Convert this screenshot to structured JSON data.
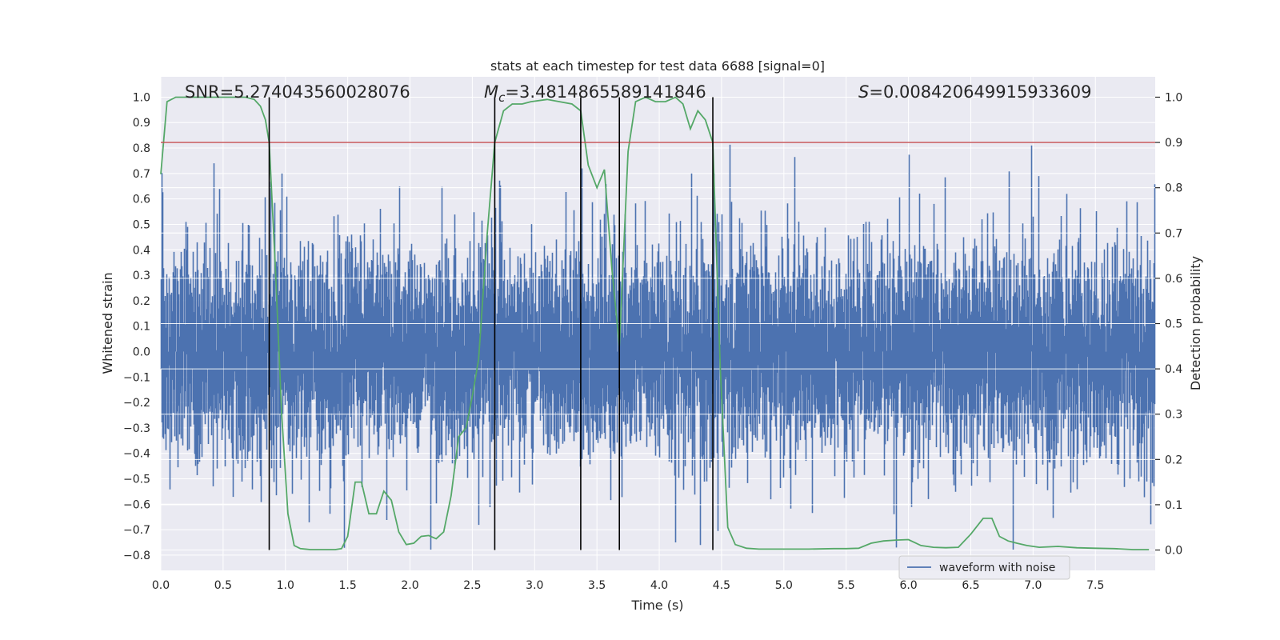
{
  "chart_data": {
    "type": "line",
    "title": "stats at each timestep for test data 6688 [signal=0]",
    "xlabel": "Time (s)",
    "ylabel_left": "Whitened strain",
    "ylabel_right": "Detection probability",
    "xlim": [
      0.0,
      7.98
    ],
    "ylim_left": [
      -0.86,
      1.08
    ],
    "ylim_right": [
      -0.045,
      1.045
    ],
    "x_ticks": [
      "0.0",
      "0.5",
      "1.0",
      "1.5",
      "2.0",
      "2.5",
      "3.0",
      "3.5",
      "4.0",
      "4.5",
      "5.0",
      "5.5",
      "6.0",
      "6.5",
      "7.0",
      "7.5"
    ],
    "y_left_ticks": [
      "-0.8",
      "-0.7",
      "-0.6",
      "-0.5",
      "-0.4",
      "-0.3",
      "-0.2",
      "-0.1",
      "0.0",
      "0.1",
      "0.2",
      "0.3",
      "0.4",
      "0.5",
      "0.6",
      "0.7",
      "0.8",
      "0.9",
      "1.0"
    ],
    "y_right_ticks": [
      "0.0",
      "0.1",
      "0.2",
      "0.3",
      "0.4",
      "0.5",
      "0.6",
      "0.7",
      "0.8",
      "0.9",
      "1.0"
    ],
    "grid": true,
    "annotations": {
      "snr": "SNR=5.274043560028076",
      "mc_symbol": "M",
      "mc_sub": "c",
      "mc_value": "=3.4814865589141846",
      "s_symbol": "S",
      "s_value": "=0.008420649915933609"
    },
    "legend": {
      "label": "waveform with noise",
      "position": "lower-right"
    },
    "threshold": 0.9,
    "detection_boundaries_s": [
      0.87,
      2.68,
      3.37,
      3.68,
      4.43
    ],
    "waveform": {
      "name": "waveform with noise",
      "color": "#4c72b0",
      "sample_rate_hz": 1024,
      "duration_s": 7.98,
      "envelope_pos": 0.46,
      "envelope_neg": -0.47,
      "notable_spikes": [
        {
          "t": 0.43,
          "v": 0.74
        },
        {
          "t": 0.97,
          "v": 0.7
        },
        {
          "t": 3.38,
          "v": 0.72
        },
        {
          "t": 4.26,
          "v": 0.7
        },
        {
          "t": 4.44,
          "v": 0.7
        },
        {
          "t": 6.99,
          "v": 0.81
        },
        {
          "t": 6.84,
          "v": 0.8
        },
        {
          "t": 2.17,
          "v": -0.78
        },
        {
          "t": 4.13,
          "v": -0.75
        },
        {
          "t": 4.33,
          "v": -0.76
        },
        {
          "t": 5.9,
          "v": -0.77
        },
        {
          "t": 6.84,
          "v": -0.78
        }
      ]
    },
    "probability": {
      "name": "Detection probability",
      "color": "#55a868",
      "points": [
        [
          0.0,
          0.83
        ],
        [
          0.05,
          0.99
        ],
        [
          0.12,
          1.0
        ],
        [
          0.25,
          1.0
        ],
        [
          0.4,
          1.0
        ],
        [
          0.55,
          1.0
        ],
        [
          0.68,
          1.0
        ],
        [
          0.75,
          0.995
        ],
        [
          0.8,
          0.98
        ],
        [
          0.84,
          0.95
        ],
        [
          0.87,
          0.9
        ],
        [
          0.92,
          0.62
        ],
        [
          0.97,
          0.3
        ],
        [
          1.02,
          0.08
        ],
        [
          1.07,
          0.01
        ],
        [
          1.12,
          0.003
        ],
        [
          1.2,
          0.001
        ],
        [
          1.4,
          0.001
        ],
        [
          1.45,
          0.003
        ],
        [
          1.5,
          0.03
        ],
        [
          1.56,
          0.15
        ],
        [
          1.61,
          0.15
        ],
        [
          1.67,
          0.08
        ],
        [
          1.73,
          0.08
        ],
        [
          1.79,
          0.13
        ],
        [
          1.85,
          0.11
        ],
        [
          1.91,
          0.04
        ],
        [
          1.97,
          0.012
        ],
        [
          2.03,
          0.015
        ],
        [
          2.09,
          0.03
        ],
        [
          2.15,
          0.032
        ],
        [
          2.21,
          0.025
        ],
        [
          2.27,
          0.04
        ],
        [
          2.33,
          0.12
        ],
        [
          2.39,
          0.25
        ],
        [
          2.45,
          0.27
        ],
        [
          2.5,
          0.34
        ],
        [
          2.55,
          0.42
        ],
        [
          2.62,
          0.7
        ],
        [
          2.68,
          0.9
        ],
        [
          2.75,
          0.97
        ],
        [
          2.82,
          0.985
        ],
        [
          2.9,
          0.985
        ],
        [
          2.97,
          0.99
        ],
        [
          3.1,
          0.995
        ],
        [
          3.2,
          0.99
        ],
        [
          3.3,
          0.985
        ],
        [
          3.37,
          0.97
        ],
        [
          3.43,
          0.85
        ],
        [
          3.5,
          0.8
        ],
        [
          3.56,
          0.84
        ],
        [
          3.62,
          0.62
        ],
        [
          3.68,
          0.45
        ],
        [
          3.75,
          0.88
        ],
        [
          3.81,
          0.99
        ],
        [
          3.89,
          1.0
        ],
        [
          3.97,
          0.99
        ],
        [
          4.05,
          0.99
        ],
        [
          4.13,
          1.0
        ],
        [
          4.19,
          0.985
        ],
        [
          4.25,
          0.93
        ],
        [
          4.31,
          0.97
        ],
        [
          4.37,
          0.95
        ],
        [
          4.43,
          0.9
        ],
        [
          4.49,
          0.4
        ],
        [
          4.55,
          0.05
        ],
        [
          4.61,
          0.012
        ],
        [
          4.7,
          0.004
        ],
        [
          4.8,
          0.002
        ],
        [
          5.0,
          0.002
        ],
        [
          5.2,
          0.002
        ],
        [
          5.4,
          0.003
        ],
        [
          5.5,
          0.003
        ],
        [
          5.6,
          0.004
        ],
        [
          5.7,
          0.015
        ],
        [
          5.8,
          0.02
        ],
        [
          5.9,
          0.022
        ],
        [
          6.0,
          0.023
        ],
        [
          6.1,
          0.01
        ],
        [
          6.2,
          0.006
        ],
        [
          6.3,
          0.005
        ],
        [
          6.4,
          0.006
        ],
        [
          6.5,
          0.035
        ],
        [
          6.6,
          0.07
        ],
        [
          6.67,
          0.07
        ],
        [
          6.73,
          0.03
        ],
        [
          6.8,
          0.02
        ],
        [
          6.87,
          0.015
        ],
        [
          6.95,
          0.01
        ],
        [
          7.05,
          0.006
        ],
        [
          7.2,
          0.008
        ],
        [
          7.35,
          0.005
        ],
        [
          7.5,
          0.004
        ],
        [
          7.65,
          0.003
        ],
        [
          7.8,
          0.001
        ],
        [
          7.93,
          0.001
        ]
      ]
    }
  }
}
